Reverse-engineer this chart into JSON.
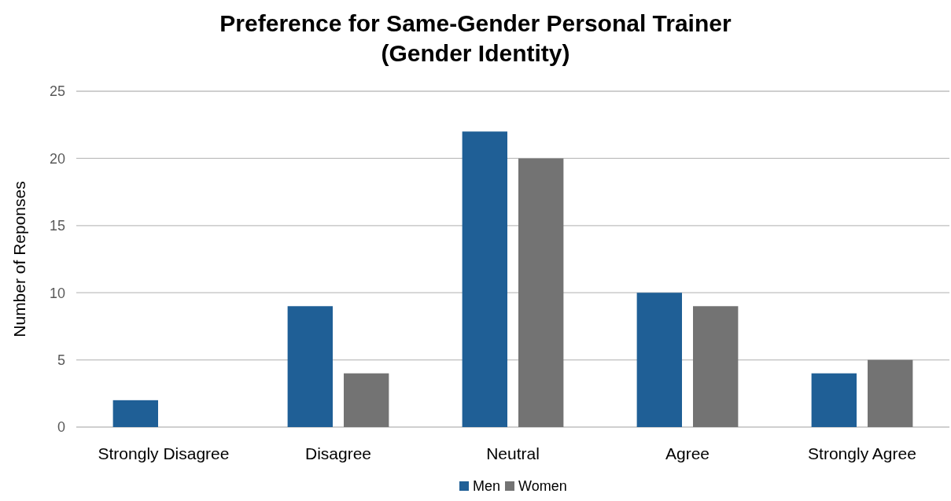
{
  "chart_data": {
    "type": "bar",
    "title": "Preference for Same-Gender Personal Trainer\n(Gender Identity)",
    "ylabel": "Number of Reponses",
    "categories": [
      "Strongly Disagree",
      "Disagree",
      "Neutral",
      "Agree",
      "Strongly Agree"
    ],
    "series": [
      {
        "name": "Men",
        "color": "#1f5f96",
        "values": [
          2,
          9,
          22,
          10,
          4
        ]
      },
      {
        "name": "Women",
        "color": "#737373",
        "values": [
          0,
          4,
          20,
          9,
          5
        ]
      }
    ],
    "ylim": [
      0,
      25
    ],
    "yticks": [
      0,
      5,
      10,
      15,
      20,
      25
    ],
    "grid": "y",
    "legend": "bottom"
  }
}
